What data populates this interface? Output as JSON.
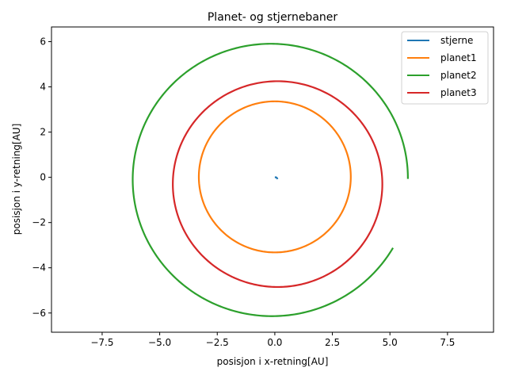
{
  "chart_data": {
    "type": "line",
    "title": "Planet- og stjernebaner",
    "xlabel": "posisjon i x-retning[AU]",
    "ylabel": "posisjon i y-retning[AU]",
    "xlim": [
      -9.7,
      9.5
    ],
    "ylim": [
      -6.85,
      6.65
    ],
    "xticks": [
      -7.5,
      -5.0,
      -2.5,
      0.0,
      2.5,
      5.0,
      7.5
    ],
    "xtick_labels": [
      "−7.5",
      "−5.0",
      "−2.5",
      "0.0",
      "2.5",
      "5.0",
      "7.5"
    ],
    "yticks": [
      -6,
      -4,
      -2,
      0,
      2,
      4,
      6
    ],
    "ytick_labels": [
      "−6",
      "−4",
      "−2",
      "0",
      "2",
      "4",
      "6"
    ],
    "grid": false,
    "legend_position": "top-right",
    "series": [
      {
        "name": "stjerne",
        "color": "#1f77b4",
        "kind": "path",
        "points": [
          [
            0.0,
            0.0
          ],
          [
            0.06,
            0.0
          ],
          [
            0.1,
            -0.04
          ],
          [
            0.12,
            -0.08
          ]
        ]
      },
      {
        "name": "planet1",
        "color": "#ff7f0e",
        "kind": "orbit",
        "center": [
          0.0,
          0.02
        ],
        "rx": 3.3,
        "ry": 3.34
      },
      {
        "name": "planet2",
        "color": "#2ca02c",
        "kind": "spiral",
        "start_angle_deg": 0,
        "end_angle_deg": 330,
        "start_radius": 5.93,
        "end_radius": 6.1,
        "center": [
          -0.15,
          -0.07
        ]
      },
      {
        "name": "planet3",
        "color": "#d62728",
        "kind": "orbit",
        "center": [
          0.12,
          -0.3
        ],
        "rx": 4.55,
        "ry": 4.55
      }
    ]
  }
}
